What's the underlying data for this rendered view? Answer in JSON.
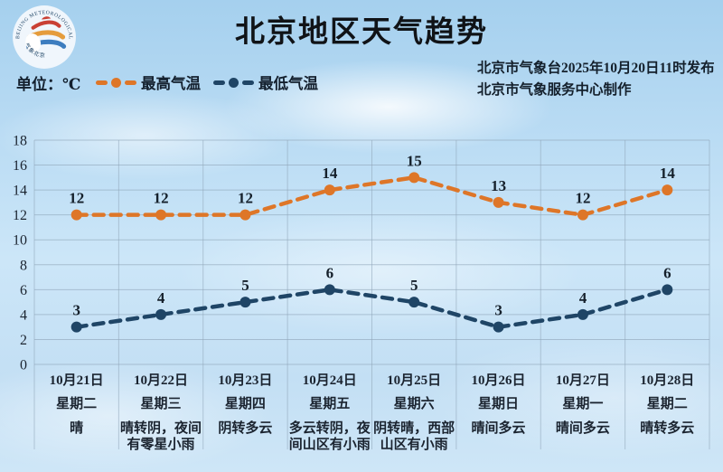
{
  "header": {
    "title": "北京地区天气趋势",
    "publisher_line1": "北京市气象台2025年10月20日11时发布",
    "publisher_line2": "北京市气象服务中心制作",
    "logo": {
      "arc_text_top": "BEIJING METEOROLOGICAL SERVICE",
      "arc_text_bottom": "气象北京"
    }
  },
  "legend": {
    "unit_label": "单位：℃",
    "items": [
      {
        "label": "最高气温",
        "color": "#DE7628"
      },
      {
        "label": "最低气温",
        "color": "#1F4566"
      }
    ]
  },
  "chart_data": {
    "type": "line",
    "title": "北京地区天气趋势",
    "ylabel": "℃",
    "ylim": [
      0,
      18
    ],
    "ytick_step": 2,
    "grid": true,
    "line_style": "dashed",
    "legend_position": "top-left",
    "categories": [
      {
        "date": "10月21日",
        "weekday": "星期二",
        "weather": "晴"
      },
      {
        "date": "10月22日",
        "weekday": "星期三",
        "weather": "晴转阴，夜间有零星小雨"
      },
      {
        "date": "10月23日",
        "weekday": "星期四",
        "weather": "阴转多云"
      },
      {
        "date": "10月24日",
        "weekday": "星期五",
        "weather": "多云转阴，夜间山区有小雨"
      },
      {
        "date": "10月25日",
        "weekday": "星期六",
        "weather": "阴转晴，西部山区有小雨"
      },
      {
        "date": "10月26日",
        "weekday": "星期日",
        "weather": "晴间多云"
      },
      {
        "date": "10月27日",
        "weekday": "星期一",
        "weather": "晴间多云"
      },
      {
        "date": "10月28日",
        "weekday": "星期二",
        "weather": "晴转多云"
      }
    ],
    "series": [
      {
        "name": "最高气温",
        "color": "#DE7628",
        "values": [
          12,
          12,
          12,
          14,
          15,
          13,
          12,
          14
        ]
      },
      {
        "name": "最低气温",
        "color": "#1F4566",
        "values": [
          3,
          4,
          5,
          6,
          5,
          3,
          4,
          6
        ]
      }
    ]
  },
  "colors": {
    "sky": "#B7DAF3",
    "grid": "#8FA5B8",
    "text": "#1B2430",
    "logo_red": "#C94034",
    "logo_orange": "#E59C3C",
    "logo_blue": "#3D7DBF"
  }
}
